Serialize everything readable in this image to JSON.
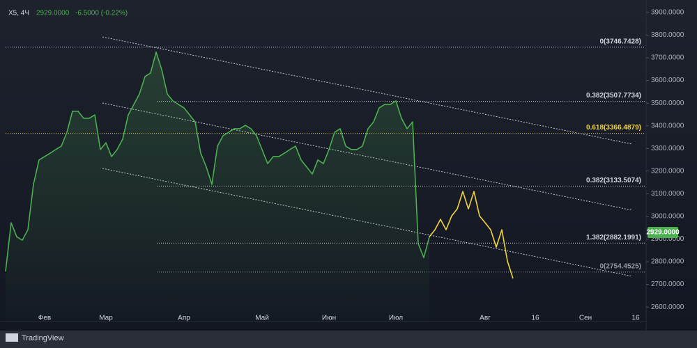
{
  "chart_data": {
    "type": "line",
    "title": "X5, 4Ч",
    "last_price": "2929.0000",
    "change": "-6.5000 (-0.22%)",
    "brand": "TradingView",
    "categories": [
      null,
      null,
      null,
      null,
      null,
      null,
      null,
      "Фев",
      null,
      null,
      null,
      null,
      null,
      null,
      null,
      null,
      null,
      null,
      "Мар",
      null,
      null,
      null,
      null,
      null,
      null,
      null,
      null,
      null,
      null,
      null,
      null,
      null,
      "Апр",
      null,
      null,
      null,
      null,
      null,
      null,
      null,
      null,
      null,
      null,
      null,
      null,
      null,
      "Май",
      null,
      null,
      null,
      null,
      null,
      null,
      null,
      null,
      null,
      null,
      null,
      "Июн",
      null,
      null,
      null,
      null,
      null,
      null,
      null,
      null,
      null,
      null,
      null,
      "Июл",
      null,
      null,
      null,
      null,
      null,
      null,
      null,
      null,
      null,
      null,
      null,
      null,
      null,
      null,
      null,
      "Авг",
      null,
      null,
      null,
      null,
      null,
      null,
      null,
      null,
      "16",
      null,
      null,
      null,
      null,
      null,
      null,
      null,
      null,
      "Сен",
      null,
      null,
      null,
      null,
      null,
      null,
      null,
      null,
      "16"
    ],
    "series": [
      {
        "color": "#4caf50",
        "values": [
          2757,
          2972,
          2910,
          2895,
          2941,
          3141,
          3249,
          3264,
          3279,
          3295,
          3310,
          3371,
          3464,
          3464,
          3433,
          3433,
          3448,
          3295,
          3325,
          3264,
          3295,
          3341,
          3448,
          3494,
          3540,
          3617,
          3633,
          3725,
          3648,
          3540,
          3510,
          3494,
          3479,
          3448,
          3417,
          3279,
          3218,
          3141,
          3310,
          3356,
          3371,
          3387,
          3387,
          3402,
          3387,
          3356,
          3295,
          3233,
          3264,
          3264,
          3279,
          3295,
          3310,
          3249,
          3218,
          3187,
          3249,
          3233,
          3295,
          3371,
          3387,
          3310,
          3295,
          3295,
          3310,
          3387,
          3417,
          3479,
          3494,
          3494,
          3510,
          3433,
          3387,
          3417,
          2880,
          2818,
          2910,
          null,
          null,
          null,
          null,
          null,
          null,
          null,
          null,
          null,
          null,
          null,
          null,
          null,
          null,
          null,
          null,
          null,
          null,
          null,
          null,
          null,
          null,
          null,
          null,
          null,
          null,
          null,
          null,
          null,
          null,
          null,
          null,
          null,
          null,
          null,
          null,
          null
        ]
      },
      {
        "color": "#f2d43c",
        "values": [
          null,
          null,
          null,
          null,
          null,
          null,
          null,
          null,
          null,
          null,
          null,
          null,
          null,
          null,
          null,
          null,
          null,
          null,
          null,
          null,
          null,
          null,
          null,
          null,
          null,
          null,
          null,
          null,
          null,
          null,
          null,
          null,
          null,
          null,
          null,
          null,
          null,
          null,
          null,
          null,
          null,
          null,
          null,
          null,
          null,
          null,
          null,
          null,
          null,
          null,
          null,
          null,
          null,
          null,
          null,
          null,
          null,
          null,
          null,
          null,
          null,
          null,
          null,
          null,
          null,
          null,
          null,
          null,
          null,
          null,
          null,
          null,
          null,
          null,
          null,
          null,
          2910,
          2941,
          2987,
          2941,
          3002,
          3033,
          3110,
          3033,
          3110,
          3002,
          2972,
          2941,
          2864,
          2941,
          2803,
          2726,
          null,
          null,
          null,
          null,
          null,
          null,
          null,
          null,
          null,
          null,
          null,
          null,
          null,
          null,
          null,
          null,
          null,
          null,
          null,
          null,
          null,
          null
        ]
      }
    ],
    "levels": [
      {
        "value": 3746.7428,
        "label": "0(3746.7428)",
        "color": "#d1d4dc"
      },
      {
        "value": 3507.7734,
        "label": "0.382(3507.7734)",
        "color": "#d1d4dc"
      },
      {
        "value": 3366.4879,
        "label": "0.618(3366.4879)",
        "color": "#f2d43c"
      },
      {
        "value": 3133.5074,
        "label": "0.382(3133.5074)",
        "color": "#d1d4dc"
      },
      {
        "value": 2882.1991,
        "label": "1.382(2882.1991)",
        "color": "#d1d4dc"
      },
      {
        "value": 2754.4525,
        "label": "0(2754.4525)",
        "color": "#9598a1"
      }
    ],
    "last": {
      "value": 2929,
      "label": "2929.0000"
    },
    "ylim": [
      2542,
      3955
    ],
    "yticks": [
      {
        "value": 2600,
        "label": "2600.0000"
      },
      {
        "value": 2700,
        "label": "2700.0000"
      },
      {
        "value": 2800,
        "label": "2800.0000"
      },
      {
        "value": 2900,
        "label": "2900.0000"
      },
      {
        "value": 3000,
        "label": "3000.0000"
      },
      {
        "value": 3100,
        "label": "3100.0000"
      },
      {
        "value": 3200,
        "label": "3200.0000"
      },
      {
        "value": 3300,
        "label": "3300.0000"
      },
      {
        "value": 3400,
        "label": "3400.0000"
      },
      {
        "value": 3500,
        "label": "3500.0000"
      },
      {
        "value": 3600,
        "label": "3600.0000"
      },
      {
        "value": 3700,
        "label": "3700.0000"
      },
      {
        "value": 3800,
        "label": "3800.0000"
      },
      {
        "value": 3900,
        "label": "3900.0000"
      }
    ],
    "grid": false
  }
}
